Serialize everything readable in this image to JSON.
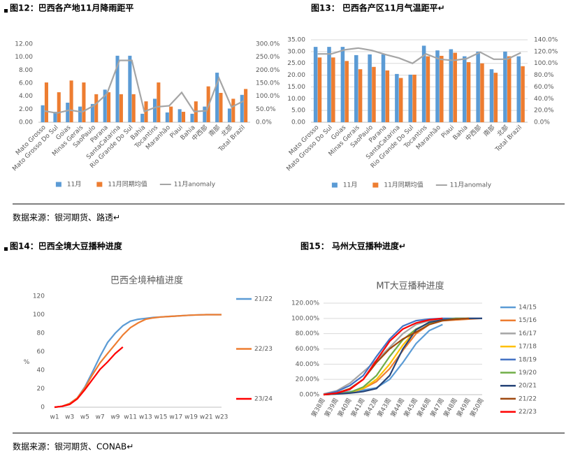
{
  "headings": [
    "图12：巴西各产地11月降雨距平",
    "图13：  巴西各产区11月气温距平↵",
    "图14：巴西全境大豆播种进度",
    "图15：  马州大豆播种进度↵"
  ],
  "sources": [
    "数据来源：银河期货、路透↵",
    "数据来源：银河期货、CONAB↵"
  ],
  "chart_data": [
    {
      "type": "bar",
      "categories": [
        "Mato Grosso",
        "Mato Grosso Do Sul",
        "Goias",
        "Minas Gerais",
        "SaoPaulo",
        "Parana",
        "SantaCatarina",
        "Rio Grande Do Sul",
        "Bahia",
        "Tocantins",
        "Maranhão",
        "Piaui",
        "Bahia",
        "中西部",
        "南部",
        "北部",
        "Total Brazil"
      ],
      "series": [
        {
          "name": "11月",
          "color": "#5b9bd5",
          "values": [
            2.6,
            1.6,
            3.0,
            2.4,
            2.8,
            5.0,
            10.2,
            10.2,
            1.3,
            3.6,
            1.5,
            2.0,
            1.3,
            2.4,
            7.6,
            2.1,
            4.2
          ]
        },
        {
          "name": "11月同期均值",
          "color": "#ed7d31",
          "values": [
            6.1,
            4.6,
            6.4,
            6.1,
            4.3,
            4.6,
            4.3,
            4.3,
            3.2,
            6.1,
            2.4,
            1.6,
            3.2,
            5.5,
            4.5,
            3.6,
            5.1
          ]
        },
        {
          "name": "11月anomaly",
          "color": "#a5a5a5",
          "type": "line",
          "axis": "y2",
          "values": [
            43,
            35,
            47,
            39,
            65,
            109,
            237,
            237,
            41,
            59,
            63,
            114,
            41,
            44,
            169,
            58,
            82
          ]
        }
      ],
      "ylim": [
        0,
        12
      ],
      "yticks": [
        {
          "value": 0,
          "label": "0.00"
        },
        {
          "value": 2,
          "label": "2.00"
        },
        {
          "value": 4,
          "label": "4.00"
        },
        {
          "value": 6,
          "label": "6.00"
        },
        {
          "value": 8,
          "label": "8.00"
        },
        {
          "value": 10,
          "label": "10.00"
        },
        {
          "value": 12,
          "label": "12.00"
        }
      ],
      "y2lim": [
        0,
        300
      ],
      "y2ticks": [
        {
          "value": 0,
          "label": "0.0%"
        },
        {
          "value": 50,
          "label": "50.0%"
        },
        {
          "value": 100,
          "label": "100.0%"
        },
        {
          "value": 150,
          "label": "150.0%"
        },
        {
          "value": 200,
          "label": "200.0%"
        },
        {
          "value": 250,
          "label": "250.0%"
        },
        {
          "value": 300,
          "label": "300.0%"
        }
      ],
      "grid": false,
      "legend": "bottom"
    },
    {
      "type": "bar",
      "categories": [
        "Mato Grosso",
        "Mato Grosso Do Sul",
        "Goias",
        "Minas Gerais",
        "SaoPaulo",
        "Parana",
        "SantaCatarina",
        "Rio Grande Do Sul",
        "Tocantins",
        "Maranhão",
        "Piaui",
        "Bahia",
        "中西部",
        "南部",
        "北部",
        "Total Brazil"
      ],
      "series": [
        {
          "name": "11月",
          "color": "#5b9bd5",
          "values": [
            32,
            32,
            32,
            28.5,
            28.8,
            28.8,
            20.5,
            20.2,
            32.5,
            30.5,
            31,
            28,
            30,
            22.5,
            30,
            28
          ]
        },
        {
          "name": "11月同期均值",
          "color": "#ed7d31",
          "values": [
            27.5,
            27.5,
            26,
            22.5,
            23.5,
            22,
            18.8,
            20.2,
            28,
            28.2,
            29.5,
            25.5,
            25,
            21,
            28,
            23.8
          ]
        },
        {
          "name": "11月anomaly",
          "color": "#a5a5a5",
          "type": "line",
          "axis": "y2",
          "values": [
            116,
            116,
            123,
            126,
            122,
            115,
            109,
            100,
            116,
            107,
            105,
            108,
            119,
            107,
            107,
            118
          ]
        }
      ],
      "ylim": [
        0,
        35
      ],
      "yticks": [
        {
          "value": 0,
          "label": "0.00"
        },
        {
          "value": 5,
          "label": "5.00"
        },
        {
          "value": 10,
          "label": "10.00"
        },
        {
          "value": 15,
          "label": "15.00"
        },
        {
          "value": 20,
          "label": "20.00"
        },
        {
          "value": 25,
          "label": "25.00"
        },
        {
          "value": 30,
          "label": "30.00"
        },
        {
          "value": 35,
          "label": "35.00"
        }
      ],
      "y2lim": [
        0,
        140
      ],
      "y2ticks": [
        {
          "value": 0,
          "label": "0.0%"
        },
        {
          "value": 20,
          "label": "20.0%"
        },
        {
          "value": 40,
          "label": "40.0%"
        },
        {
          "value": 60,
          "label": "60.0%"
        },
        {
          "value": 80,
          "label": "80.0%"
        },
        {
          "value": 100,
          "label": "100.0%"
        },
        {
          "value": 120,
          "label": "120.0%"
        },
        {
          "value": 140,
          "label": "140.0%"
        }
      ],
      "grid": true,
      "legend": "bottom"
    },
    {
      "type": "line",
      "title": "巴西全境种植进度",
      "ylabel": "%",
      "categories": [
        "w1",
        null,
        "w3",
        null,
        "w5",
        null,
        "w7",
        null,
        "w9",
        null,
        "w11",
        null,
        "w13",
        null,
        "w15",
        null,
        "w17",
        null,
        "w19",
        null,
        "w21",
        null,
        "w23"
      ],
      "series": [
        {
          "name": "21/22",
          "color": "#5b9bd5",
          "values": [
            0,
            1,
            4,
            10,
            22,
            38,
            55,
            70,
            80,
            88,
            93,
            95,
            96,
            97,
            97.5,
            98,
            98.5,
            99,
            99.5,
            99.8,
            100,
            100,
            100
          ]
        },
        {
          "name": "22/23",
          "color": "#ed7d31",
          "values": [
            0,
            1,
            4,
            10,
            21,
            35,
            48,
            58,
            68,
            78,
            86,
            91,
            95,
            96.5,
            97.5,
            98,
            98.5,
            99,
            99.5,
            99.8,
            100,
            100,
            100
          ]
        },
        {
          "name": "23/24",
          "color": "#ff0000",
          "values": [
            0,
            1,
            3,
            9,
            19,
            30,
            41,
            49,
            58,
            65,
            null,
            null,
            null,
            null,
            null,
            null,
            null,
            null,
            null,
            null,
            null,
            null,
            null
          ]
        }
      ],
      "ylim": [
        0,
        120
      ],
      "yticks": [
        0,
        20,
        40,
        60,
        80,
        100,
        120
      ],
      "grid": false,
      "legend": "right"
    },
    {
      "type": "line",
      "title": "MT大豆播种进度",
      "categories": [
        "第38周",
        "第39周",
        "第40周",
        "第41周",
        "第42周",
        "第43周",
        "第44周",
        "第45周",
        "第46周",
        "第47周",
        "第48周",
        "第49周",
        "第50周"
      ],
      "series": [
        {
          "name": "14/15",
          "color": "#5b9bd5",
          "values": [
            0,
            2,
            4,
            6,
            9,
            20,
            42,
            67,
            84,
            92,
            null,
            null,
            null
          ]
        },
        {
          "name": "15/16",
          "color": "#ed7d31",
          "values": [
            0,
            1,
            3,
            8,
            17,
            34,
            58,
            80,
            92,
            97,
            98,
            99,
            100
          ]
        },
        {
          "name": "16/17",
          "color": "#a5a5a5",
          "values": [
            1,
            5,
            15,
            30,
            45,
            62,
            80,
            92,
            97,
            99,
            100,
            100,
            null
          ]
        },
        {
          "name": "17/18",
          "color": "#ffc000",
          "values": [
            0,
            1,
            3,
            8,
            20,
            40,
            65,
            85,
            95,
            98,
            99,
            100,
            null
          ]
        },
        {
          "name": "18/19",
          "color": "#4472c4",
          "values": [
            0,
            4,
            12,
            25,
            50,
            73,
            90,
            97,
            99,
            100,
            100,
            100,
            100
          ]
        },
        {
          "name": "19/20",
          "color": "#70ad47",
          "values": [
            0,
            1,
            3,
            10,
            25,
            50,
            72,
            86,
            94,
            98,
            100,
            100,
            null
          ]
        },
        {
          "name": "20/21",
          "color": "#264478",
          "values": [
            0,
            1,
            2,
            4,
            8,
            25,
            60,
            85,
            95,
            98,
            99,
            100,
            100
          ]
        },
        {
          "name": "21/22",
          "color": "#9e480e",
          "values": [
            0,
            2,
            8,
            20,
            42,
            60,
            73,
            82,
            92,
            97,
            99,
            100,
            null
          ]
        },
        {
          "name": "22/23",
          "color": "#ff0000",
          "values": [
            0,
            2,
            7,
            20,
            45,
            70,
            86,
            94,
            98,
            100,
            null,
            null,
            null
          ]
        }
      ],
      "ylim": [
        0,
        120
      ],
      "yticks": [
        {
          "value": 0,
          "label": "0.00%"
        },
        {
          "value": 20,
          "label": "20.00%"
        },
        {
          "value": 40,
          "label": "40.00%"
        },
        {
          "value": 60,
          "label": "60.00%"
        },
        {
          "value": 80,
          "label": "80.00%"
        },
        {
          "value": 100,
          "label": "100.00%"
        },
        {
          "value": 120,
          "label": "120.00%"
        }
      ],
      "grid": true,
      "legend": "right"
    }
  ]
}
